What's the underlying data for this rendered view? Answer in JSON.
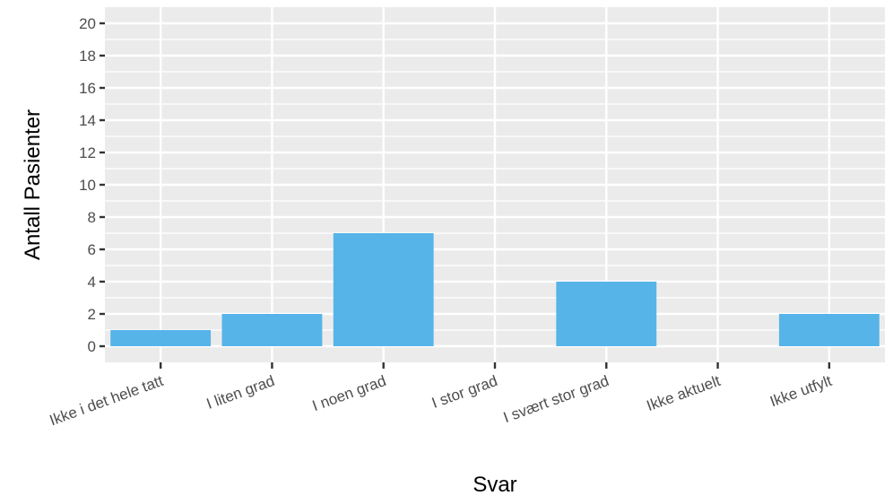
{
  "chart_data": {
    "type": "bar",
    "title": "",
    "xlabel": "Svar",
    "ylabel": "Antall Pasienter",
    "categories": [
      "Ikke i det hele tatt",
      "I liten grad",
      "I noen grad",
      "I stor grad",
      "I svært stor grad",
      "Ikke aktuelt",
      "Ikke utfylt"
    ],
    "values": [
      1,
      2,
      7,
      0,
      4,
      0,
      2
    ],
    "yticks": [
      0,
      2,
      4,
      6,
      8,
      10,
      12,
      14,
      16,
      18,
      20
    ],
    "ylim": [
      -1,
      21
    ],
    "grid": true,
    "bar_color": "#56B4E9",
    "panel_color": "#EBEBEB"
  }
}
